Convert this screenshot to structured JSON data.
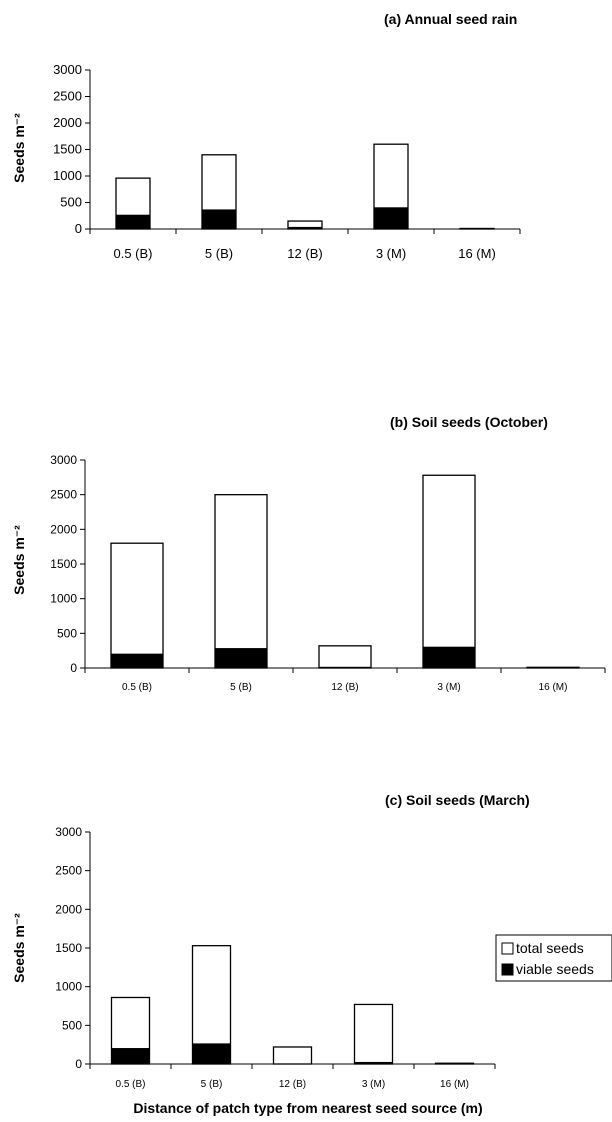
{
  "chart_data": [
    {
      "type": "bar",
      "title": "(a)   Annual seed rain",
      "ylabel": "Seeds m⁻²",
      "xlabel": "",
      "categories": [
        "0.5 (B)",
        "5 (B)",
        "12 (B)",
        "3 (M)",
        "16 (M)"
      ],
      "ylim": [
        0,
        3000
      ],
      "yticks": [
        0,
        500,
        1000,
        1500,
        2000,
        2500,
        3000
      ],
      "series": [
        {
          "name": "total seeds",
          "values": [
            960,
            1400,
            150,
            1600,
            10
          ]
        },
        {
          "name": "viable seeds",
          "values": [
            260,
            360,
            30,
            400,
            0
          ]
        }
      ],
      "colors": {
        "total": "#ffffff",
        "viable": "#000000"
      }
    },
    {
      "type": "bar",
      "title": "(b)   Soil seeds (October)",
      "ylabel": "Seeds m⁻²",
      "xlabel": "",
      "categories": [
        "0.5 (B)",
        "5 (B)",
        "12 (B)",
        "3 (M)",
        "16 (M)"
      ],
      "ylim": [
        0,
        3000
      ],
      "yticks": [
        0,
        500,
        1000,
        1500,
        2000,
        2500,
        3000
      ],
      "series": [
        {
          "name": "total seeds",
          "values": [
            1800,
            2500,
            320,
            2780,
            10
          ]
        },
        {
          "name": "viable seeds",
          "values": [
            200,
            280,
            10,
            300,
            0
          ]
        }
      ],
      "colors": {
        "total": "#ffffff",
        "viable": "#000000"
      }
    },
    {
      "type": "bar",
      "title": "(c)   Soil seeds (March)",
      "ylabel": "Seeds m⁻²",
      "xlabel": "Distance of patch type from nearest seed source (m)",
      "categories": [
        "0.5 (B)",
        "5 (B)",
        "12 (B)",
        "3 (M)",
        "16 (M)"
      ],
      "ylim": [
        0,
        3000
      ],
      "yticks": [
        0,
        500,
        1000,
        1500,
        2000,
        2500,
        3000
      ],
      "series": [
        {
          "name": "total seeds",
          "values": [
            860,
            1530,
            220,
            770,
            10
          ]
        },
        {
          "name": "viable seeds",
          "values": [
            200,
            260,
            0,
            20,
            0
          ]
        }
      ],
      "legend": {
        "items": [
          "total seeds",
          "viable seeds"
        ],
        "position": "right"
      },
      "colors": {
        "total": "#ffffff",
        "viable": "#000000"
      }
    }
  ]
}
